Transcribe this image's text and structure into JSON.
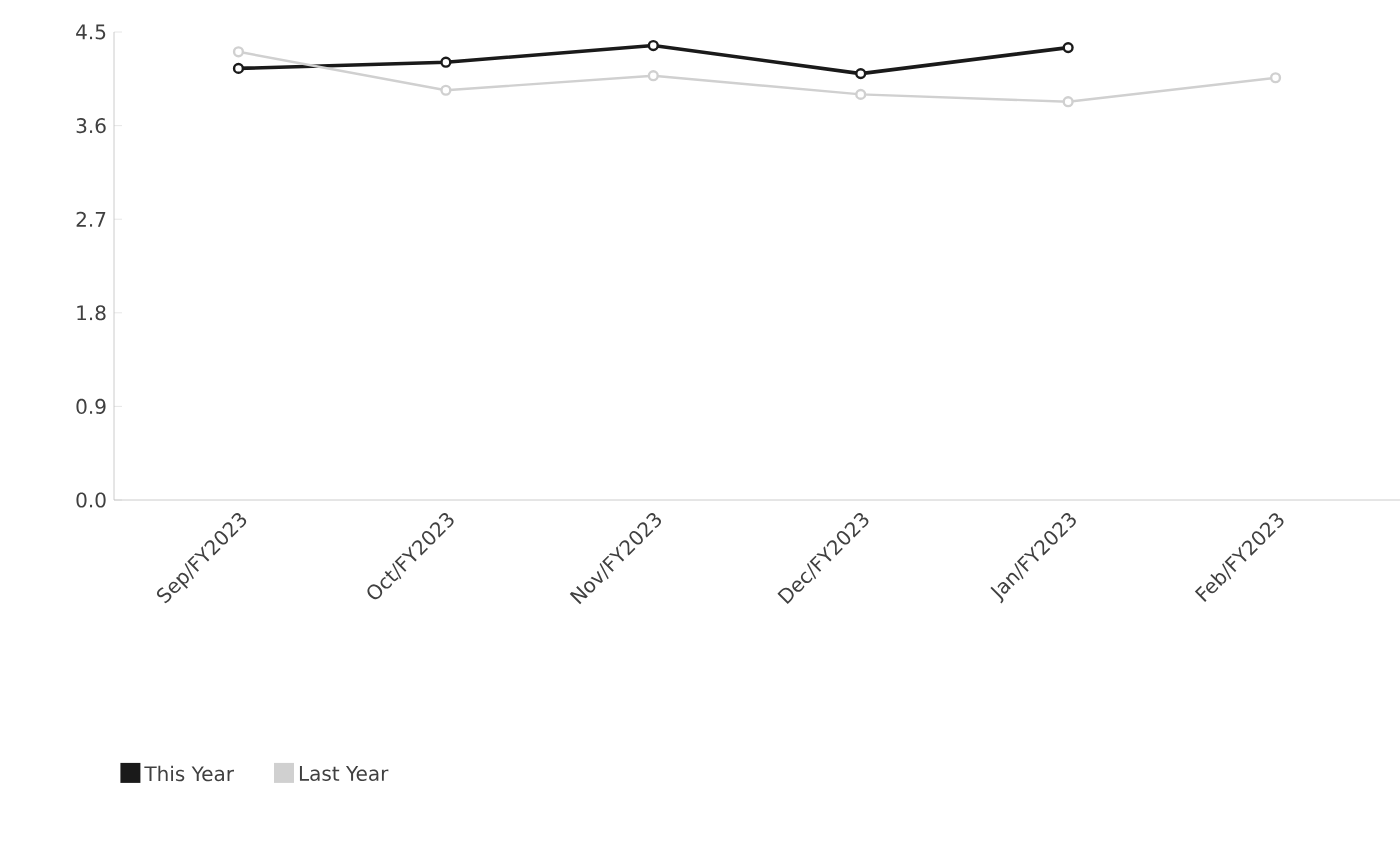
{
  "chart_data": {
    "type": "line",
    "categories": [
      "Sep/FY2023",
      "Oct/FY2023",
      "Nov/FY2023",
      "Dec/FY2023",
      "Jan/FY2023",
      "Feb/FY2023"
    ],
    "series": [
      {
        "name": "This Year",
        "color": "#1a1a1a",
        "values": [
          4.15,
          4.21,
          4.37,
          4.1,
          4.35,
          null
        ]
      },
      {
        "name": "Last Year",
        "color": "#d0d0d0",
        "values": [
          4.31,
          3.94,
          4.08,
          3.9,
          3.83,
          4.06
        ]
      }
    ],
    "ylim": [
      0,
      4.5
    ],
    "yticks": [
      {
        "value": 0,
        "label": "0.0"
      },
      0.9,
      1.8,
      2.7,
      3.6,
      4.5
    ],
    "grid": false,
    "legend": "bottom left",
    "marker": "circle",
    "line_style": "solid"
  }
}
